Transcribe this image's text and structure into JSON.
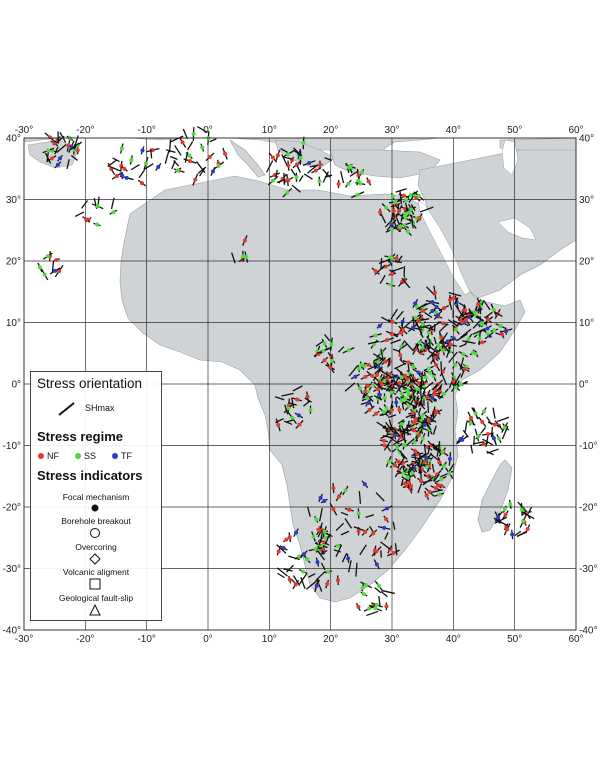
{
  "map": {
    "lon_range": [
      -30,
      60
    ],
    "lat_range": [
      -40,
      40
    ],
    "x_tick_labels": [
      "-30°",
      "-20°",
      "-10°",
      "0°",
      "10°",
      "20°",
      "30°",
      "40°",
      "50°",
      "60°"
    ],
    "y_tick_labels": [
      "40°",
      "30°",
      "20°",
      "10°",
      "0°",
      "-10°",
      "-20°",
      "-30°",
      "-40°"
    ],
    "colors": {
      "land": "#cfd3d6",
      "ocean": "#ffffff",
      "grid": "#333333",
      "shmax": "#111111",
      "nf": "#e63a2e",
      "ss": "#4ddb3a",
      "tf": "#2a3cc7"
    }
  },
  "legend": {
    "orientation_title": "Stress orientation",
    "shmax_label": "SHmax",
    "regime_title": "Stress regime",
    "regimes": [
      {
        "code": "NF",
        "color": "#e63a2e"
      },
      {
        "code": "SS",
        "color": "#4ddb3a"
      },
      {
        "code": "TF",
        "color": "#2a3cc7"
      }
    ],
    "indicators_title": "Stress indicators",
    "indicators": [
      {
        "label": "Focal mechanism",
        "symbol": "filled-circle"
      },
      {
        "label": "Borehole breakout",
        "symbol": "open-circle"
      },
      {
        "label": "Overcoring",
        "symbol": "diamond"
      },
      {
        "label": "Volcanic aligment",
        "symbol": "square"
      },
      {
        "label": "Geological fault-slip",
        "symbol": "triangle"
      }
    ]
  }
}
